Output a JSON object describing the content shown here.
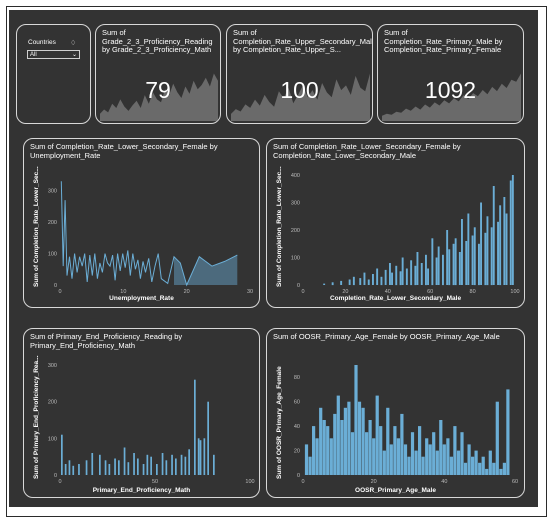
{
  "slicer": {
    "label": "Countries",
    "value": "All"
  },
  "kpis": [
    {
      "title": "Sum of Grade_2_3_Proficiency_Reading by Grade_2_3_Proficiency_Math",
      "value": "79"
    },
    {
      "title": "Sum of Completion_Rate_Upper_Secondary_Male by Completion_Rate_Upper_S...",
      "value": "100"
    },
    {
      "title": "Sum of Completion_Rate_Primary_Male by Completion_Rate_Primary_Female",
      "value": "1092"
    }
  ],
  "chart_data": [
    {
      "type": "line",
      "title": "Sum of Completion_Rate_Lower_Secondary_Female by Unemployment_Rate",
      "xlabel": "Unemployment_Rate",
      "ylabel": "Sum of Completion_Rate_Lower_Sec...",
      "xlim": [
        0,
        30
      ],
      "ylim": [
        0,
        350
      ],
      "xticks": [
        "0",
        "10",
        "20",
        "30"
      ],
      "yticks": [
        "0",
        "100",
        "200",
        "300"
      ],
      "x": [
        0.2,
        0.5,
        0.8,
        1.1,
        1.5,
        1.9,
        2.3,
        2.7,
        3.1,
        3.5,
        3.9,
        4.3,
        4.7,
        5.1,
        5.5,
        5.9,
        6.3,
        6.7,
        7.1,
        7.5,
        7.9,
        8.3,
        8.7,
        9.1,
        9.5,
        9.9,
        10.3,
        10.7,
        11.1,
        11.5,
        11.9,
        12.3,
        12.7,
        13.1,
        13.5,
        14.0,
        14.5,
        15.0,
        15.5,
        16.0,
        17.0,
        18.0,
        19.0,
        20.0,
        22.0,
        24.0,
        26.0,
        28.0
      ],
      "values": [
        330,
        60,
        270,
        30,
        90,
        20,
        100,
        40,
        90,
        60,
        100,
        10,
        95,
        30,
        100,
        20,
        70,
        40,
        100,
        70,
        60,
        95,
        15,
        100,
        45,
        100,
        55,
        110,
        30,
        100,
        50,
        80,
        20,
        75,
        40,
        85,
        10,
        60,
        100,
        20,
        5,
        90,
        70,
        0,
        90,
        60,
        75,
        95
      ]
    },
    {
      "type": "bar",
      "title": "Sum of Completion_Rate_Lower_Secondary_Female by Completion_Rate_Lower_Secondary_Male",
      "xlabel": "Completion_Rate_Lower_Secondary_Male",
      "ylabel": "Sum of Completion_Rate_Lower_Sec...",
      "xlim": [
        0,
        100
      ],
      "ylim": [
        0,
        400
      ],
      "xticks": [
        "0",
        "20",
        "40",
        "60",
        "80",
        "100"
      ],
      "yticks": [
        "0",
        "100",
        "200",
        "300",
        "400"
      ],
      "x": [
        10,
        14,
        18,
        22,
        24,
        27,
        29,
        31,
        33,
        35,
        37,
        39,
        41,
        42,
        44,
        46,
        47,
        49,
        51,
        53,
        54,
        56,
        58,
        59,
        61,
        63,
        64,
        66,
        68,
        69,
        71,
        72,
        74,
        75,
        77,
        78,
        80,
        81,
        83,
        84,
        86,
        87,
        89,
        90,
        92,
        93,
        95,
        96,
        98,
        99
      ],
      "values": [
        5,
        10,
        15,
        20,
        30,
        25,
        45,
        20,
        40,
        60,
        30,
        55,
        80,
        45,
        70,
        50,
        100,
        60,
        90,
        70,
        120,
        80,
        110,
        60,
        170,
        100,
        140,
        110,
        200,
        130,
        150,
        170,
        120,
        240,
        160,
        260,
        180,
        210,
        150,
        300,
        190,
        250,
        210,
        360,
        230,
        290,
        320,
        260,
        380,
        400
      ]
    },
    {
      "type": "bar",
      "title": "Sum of Primary_End_Proficiency_Reading by Primary_End_Proficiency_Math",
      "xlabel": "Primary_End_Proficiency_Math",
      "ylabel": "Sum of Primary_End_Proficiency_Rea...",
      "xlim": [
        0,
        100
      ],
      "ylim": [
        0,
        300
      ],
      "xticks": [
        "0",
        "50",
        "100"
      ],
      "yticks": [
        "0",
        "100",
        "200",
        "300"
      ],
      "x": [
        1,
        3,
        5,
        7,
        10,
        14,
        17,
        21,
        24,
        26,
        29,
        31,
        34,
        36,
        39,
        41,
        44,
        46,
        48,
        51,
        54,
        56,
        59,
        61,
        64,
        66,
        68,
        71,
        73,
        74,
        76,
        78,
        81
      ],
      "values": [
        110,
        30,
        40,
        25,
        30,
        40,
        60,
        55,
        40,
        30,
        45,
        40,
        75,
        35,
        60,
        45,
        30,
        55,
        50,
        30,
        60,
        40,
        55,
        45,
        55,
        50,
        70,
        260,
        100,
        95,
        100,
        200,
        55
      ]
    },
    {
      "type": "bar",
      "title": "Sum of OOSR_Primary_Age_Female by OOSR_Primary_Age_Male",
      "xlabel": "OOSR_Primary_Age_Male",
      "ylabel": "Sum of OOSR_Primary_Age_Female",
      "xlim": [
        0,
        60
      ],
      "ylim": [
        0,
        90
      ],
      "xticks": [
        "0",
        "20",
        "40",
        "60"
      ],
      "yticks": [
        "0",
        "20",
        "40",
        "60",
        "80"
      ],
      "x": [
        1,
        2,
        3,
        4,
        5,
        6,
        7,
        8,
        9,
        10,
        11,
        12,
        13,
        14,
        15,
        16,
        17,
        18,
        19,
        20,
        21,
        22,
        23,
        24,
        25,
        26,
        27,
        28,
        29,
        30,
        31,
        32,
        33,
        34,
        35,
        36,
        37,
        38,
        39,
        40,
        41,
        42,
        43,
        44,
        45,
        46,
        47,
        48,
        49,
        50,
        51,
        52,
        53,
        54,
        55,
        56,
        57,
        58
      ],
      "values": [
        25,
        15,
        40,
        30,
        55,
        45,
        40,
        30,
        50,
        65,
        45,
        55,
        60,
        35,
        90,
        60,
        55,
        35,
        45,
        30,
        65,
        40,
        20,
        55,
        25,
        40,
        30,
        50,
        25,
        15,
        35,
        20,
        40,
        15,
        30,
        25,
        35,
        20,
        45,
        25,
        30,
        15,
        40,
        20,
        35,
        10,
        25,
        15,
        20,
        10,
        15,
        5,
        20,
        10,
        60,
        5,
        10,
        70
      ]
    }
  ],
  "sparklines": [
    [
      5,
      8,
      6,
      12,
      9,
      15,
      10,
      7,
      11,
      14,
      9,
      18,
      12,
      20,
      15,
      13,
      22,
      18,
      26,
      20,
      16,
      24,
      19,
      28,
      22,
      25,
      30,
      24,
      33,
      28
    ],
    [
      6,
      10,
      8,
      14,
      11,
      18,
      13,
      22,
      16,
      12,
      25,
      19,
      28,
      15,
      22,
      30,
      20,
      26,
      18,
      32,
      24,
      20,
      35,
      26,
      30,
      22,
      38,
      28,
      25,
      40
    ],
    [
      5,
      7,
      6,
      9,
      8,
      12,
      10,
      14,
      11,
      16,
      13,
      18,
      15,
      20,
      17,
      22,
      19,
      25,
      21,
      27,
      24,
      30,
      26,
      33,
      29,
      36,
      32,
      40,
      38,
      46
    ]
  ],
  "colors": {
    "background": "#333333",
    "bar": "#6baed6",
    "sparkline": "#6a6a6a",
    "text": "#ffffff"
  }
}
